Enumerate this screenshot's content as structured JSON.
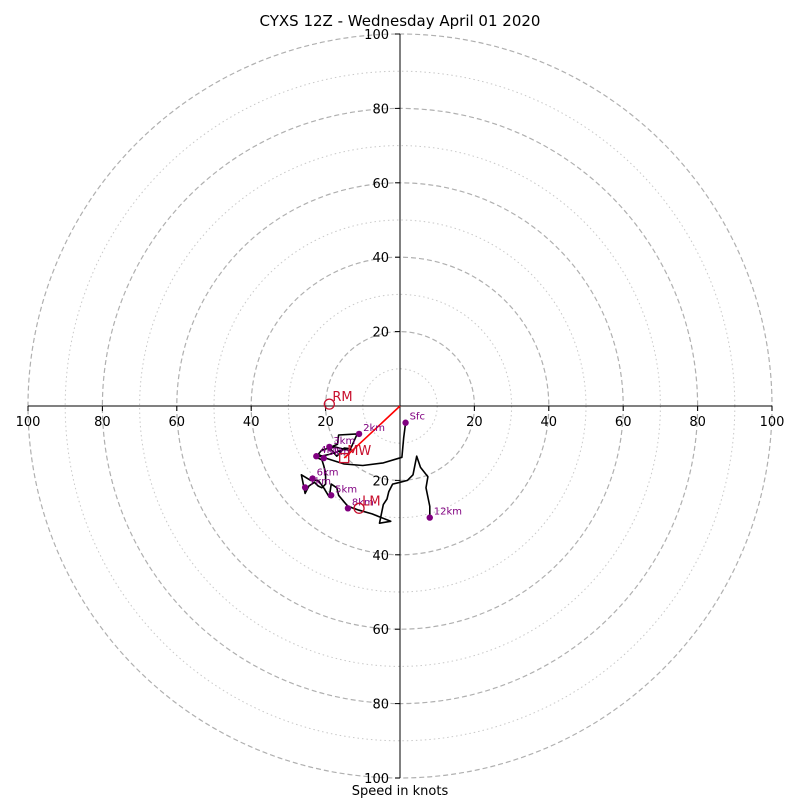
{
  "chart_data": {
    "type": "hodograph",
    "title": "CYXS 12Z - Wednesday April 01 2020",
    "xlabel": "Speed in knots",
    "units": "knots",
    "range": [
      -100,
      100
    ],
    "major_rings": [
      20,
      40,
      60,
      80,
      100
    ],
    "minor_rings": [
      10,
      30,
      50,
      70,
      90
    ],
    "tick_labels": {
      "x_left": [
        "100",
        "80",
        "60",
        "40",
        "20"
      ],
      "x_right": [
        "20",
        "40",
        "60",
        "80",
        "100"
      ],
      "y_top": [
        "100",
        "80",
        "60",
        "40",
        "20"
      ],
      "y_bottom": [
        "20",
        "40",
        "60",
        "80",
        "100"
      ]
    },
    "hodograph_trace": [
      [
        1.5,
        -4.5
      ],
      [
        1.0,
        -8.5
      ],
      [
        0.5,
        -13.8
      ],
      [
        -4.5,
        -15.3
      ],
      [
        -10.0,
        -16.0
      ],
      [
        -15.0,
        -15.6
      ],
      [
        -20.0,
        -14.0
      ],
      [
        -22.0,
        -13.0
      ],
      [
        -21.0,
        -11.8
      ],
      [
        -17.5,
        -11.0
      ],
      [
        -13.5,
        -12.0
      ],
      [
        -11.5,
        -7.5
      ],
      [
        -16.5,
        -7.8
      ],
      [
        -16.8,
        -10.3
      ],
      [
        -19.0,
        -11.2
      ],
      [
        -17.0,
        -13.5
      ],
      [
        -16.5,
        -13.0
      ],
      [
        -15.0,
        -11.3
      ],
      [
        -14.0,
        -11.4
      ],
      [
        -19.0,
        -13.0
      ],
      [
        -22.5,
        -13.8
      ],
      [
        -21.0,
        -14.5
      ],
      [
        -20.5,
        -16.0
      ],
      [
        -20.0,
        -18.0
      ],
      [
        -20.0,
        -21.0
      ],
      [
        -21.0,
        -22.0
      ],
      [
        -22.0,
        -21.5
      ],
      [
        -23.0,
        -20.5
      ],
      [
        -24.5,
        -21.5
      ],
      [
        -25.5,
        -23.5
      ],
      [
        -26.5,
        -18.5
      ],
      [
        -24.0,
        -20.0
      ],
      [
        -22.0,
        -20.0
      ],
      [
        -20.5,
        -22.0
      ],
      [
        -19.0,
        -24.5
      ],
      [
        -18.5,
        -21.0
      ],
      [
        -17.0,
        -22.0
      ],
      [
        -16.5,
        -24.0
      ],
      [
        -14.0,
        -27.0
      ],
      [
        -11.0,
        -28.0
      ],
      [
        -7.5,
        -29.0
      ],
      [
        -2.5,
        -31.0
      ],
      [
        -5.5,
        -31.5
      ],
      [
        -5.0,
        -29.0
      ],
      [
        -4.5,
        -26.5
      ],
      [
        -3.5,
        -25.0
      ],
      [
        -3.0,
        -23.0
      ],
      [
        -2.0,
        -21.0
      ],
      [
        0.0,
        -20.5
      ],
      [
        2.0,
        -20.0
      ],
      [
        3.5,
        -18.5
      ],
      [
        4.5,
        -13.5
      ],
      [
        5.5,
        -16.5
      ],
      [
        7.5,
        -19.0
      ],
      [
        7.0,
        -22.0
      ],
      [
        7.5,
        -24.5
      ],
      [
        8.0,
        -27.0
      ],
      [
        8.0,
        -29.8
      ]
    ],
    "height_markers": [
      {
        "label": "Sfc",
        "u": 1.5,
        "v": -4.5
      },
      {
        "label": "2km",
        "u": -11.0,
        "v": -7.5
      },
      {
        "label": "3km",
        "u": -19.0,
        "v": -11.0
      },
      {
        "label": "4km",
        "u": -22.5,
        "v": -13.5
      },
      {
        "label": "5km",
        "u": -20.5,
        "v": -14.0
      },
      {
        "label": "6km",
        "u": -23.5,
        "v": -19.5
      },
      {
        "label": "7km",
        "u": -25.5,
        "v": -21.9
      },
      {
        "label": "5km",
        "u": -18.5,
        "v": -24.0
      },
      {
        "label": "8km",
        "u": -14.0,
        "v": -27.5
      },
      {
        "label": "12km",
        "u": 8.0,
        "v": -30.0
      }
    ],
    "motion_markers": [
      {
        "label": "RM",
        "u": -19.0,
        "v": 0.5,
        "shape": "circle"
      },
      {
        "label": "MW",
        "u": -15.0,
        "v": -14.0,
        "shape": "square"
      },
      {
        "label": "LM",
        "u": -11.0,
        "v": -27.5,
        "shape": "circle"
      }
    ],
    "shear_vector": {
      "from": [
        0.0,
        0.0
      ],
      "to": [
        -15.0,
        -14.0
      ]
    },
    "colors": {
      "trace": "#000000",
      "markers": "#800080",
      "motion": "#c8102e",
      "shear": "#ff0000",
      "rings": "#b0b0b0"
    }
  }
}
